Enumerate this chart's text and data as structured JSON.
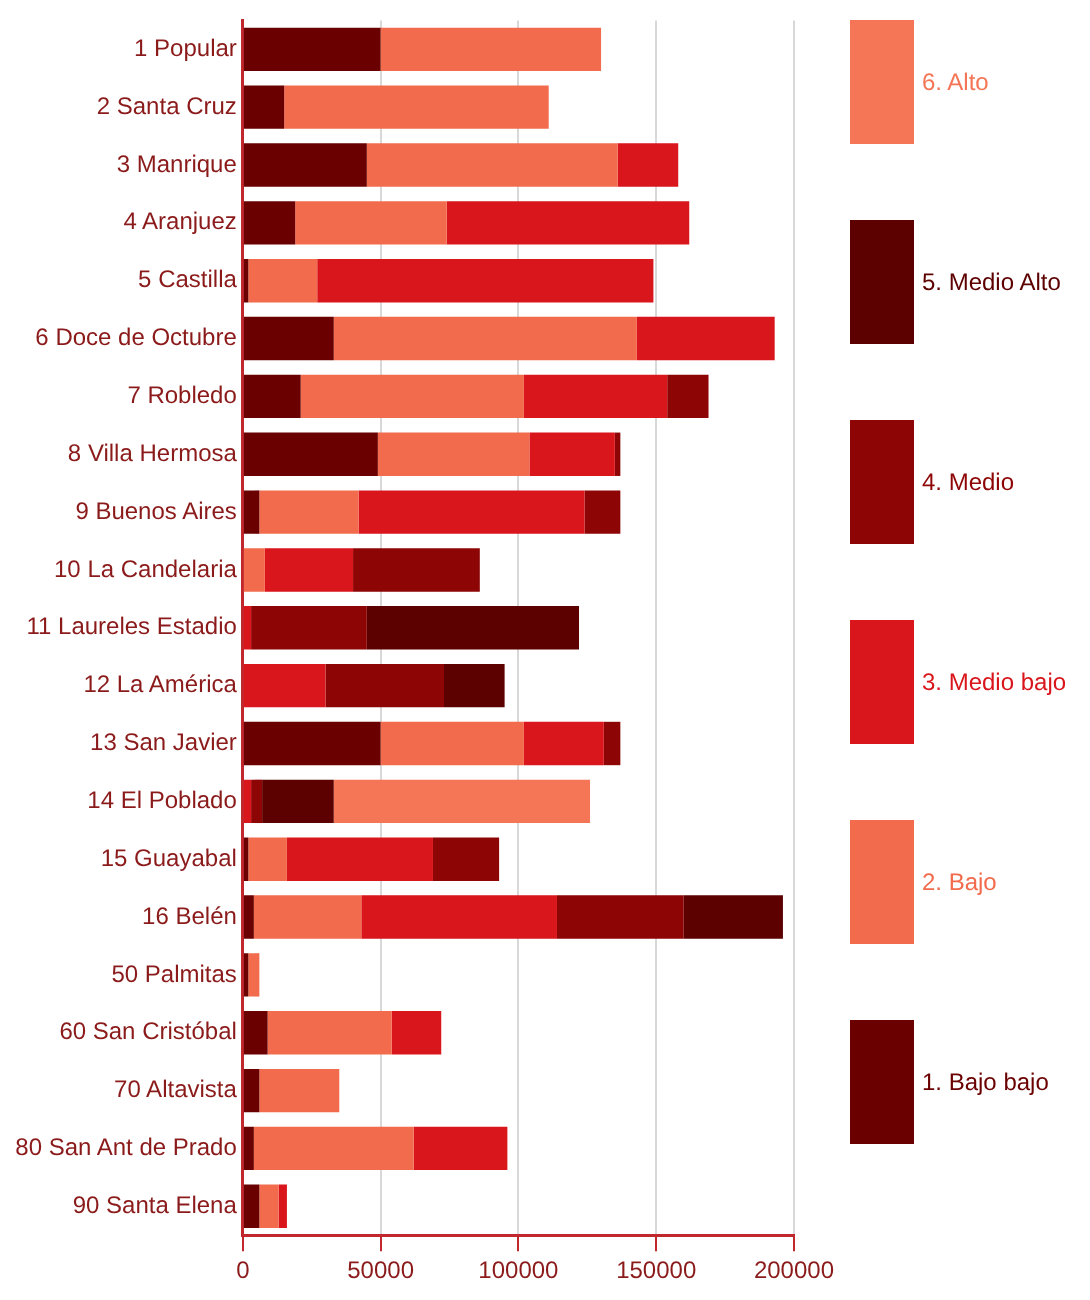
{
  "chart_data": {
    "type": "bar",
    "orientation": "horizontal",
    "stacked": true,
    "categories": [
      "1 Popular",
      "2 Santa Cruz",
      "3 Manrique",
      "4 Aranjuez",
      "5 Castilla",
      "6 Doce de Octubre",
      "7 Robledo",
      "8 Villa Hermosa",
      "9 Buenos Aires",
      "10 La Candelaria",
      "11 Laureles Estadio",
      "12 La América",
      "13 San Javier",
      "14 El Poblado",
      "15 Guayabal",
      "16 Belén",
      "50 Palmitas",
      "60 San Cristóbal",
      "70 Altavista",
      "80 San Ant de Prado",
      "90 Santa Elena"
    ],
    "series": [
      {
        "name": "1. Bajo bajo",
        "color": "#6b0000",
        "values": [
          50000,
          15000,
          45000,
          19000,
          2000,
          33000,
          21000,
          49000,
          6000,
          null,
          null,
          null,
          50000,
          null,
          2000,
          4000,
          2000,
          9000,
          6000,
          4000,
          6000
        ]
      },
      {
        "name": "2. Bajo",
        "color": "#f26b4d",
        "values": [
          80000,
          96000,
          91000,
          55000,
          25000,
          110000,
          81000,
          55000,
          36000,
          8000,
          null,
          null,
          52000,
          null,
          14000,
          39000,
          4000,
          45000,
          29000,
          58000,
          7000
        ]
      },
      {
        "name": "3. Medio bajo",
        "color": "#d9161c",
        "values": [
          null,
          null,
          22000,
          88000,
          122000,
          50000,
          52000,
          31000,
          82000,
          32000,
          3000,
          30000,
          29000,
          3000,
          53000,
          71000,
          null,
          18000,
          null,
          34000,
          3000
        ]
      },
      {
        "name": "4. Medio",
        "color": "#8e0505",
        "values": [
          null,
          null,
          null,
          null,
          null,
          null,
          15000,
          2000,
          13000,
          46000,
          42000,
          43000,
          6000,
          4000,
          24000,
          46000,
          null,
          null,
          null,
          null,
          null
        ]
      },
      {
        "name": "5. Medio Alto",
        "color": "#5c0000",
        "values": [
          null,
          null,
          null,
          null,
          null,
          null,
          null,
          null,
          null,
          null,
          77000,
          22000,
          null,
          26000,
          null,
          36000,
          null,
          null,
          null,
          null,
          null
        ]
      },
      {
        "name": "6. Alto",
        "color": "#f47656",
        "values": [
          null,
          null,
          null,
          null,
          null,
          null,
          null,
          null,
          null,
          null,
          null,
          null,
          null,
          93000,
          null,
          null,
          null,
          null,
          null,
          null,
          null
        ]
      }
    ],
    "xlim": [
      0,
      200000
    ],
    "xticks": [
      0,
      50000,
      100000,
      150000,
      200000
    ],
    "grid": "x",
    "legend": "right"
  }
}
